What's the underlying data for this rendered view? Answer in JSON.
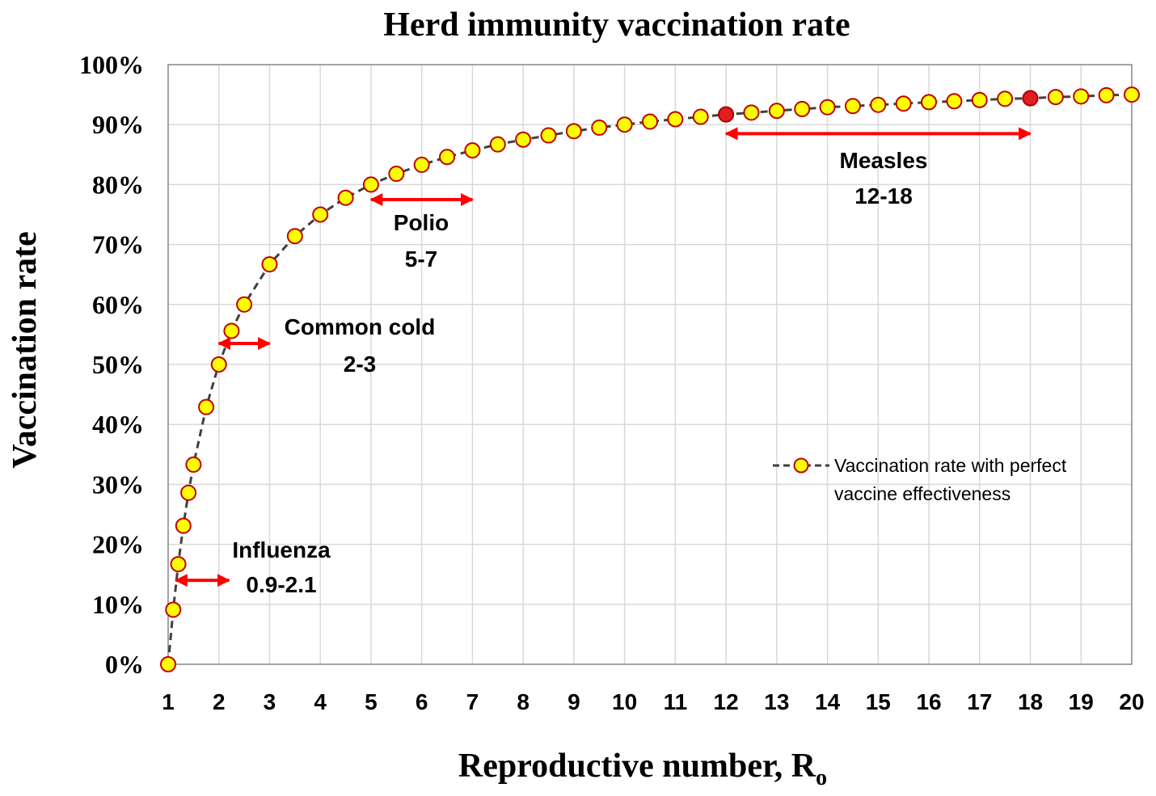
{
  "chart_data": {
    "type": "line",
    "title": "Herd immunity vaccination rate",
    "xlabel": "Reproductive number, R",
    "xlabel_subscript": "o",
    "ylabel": "Vaccination rate",
    "xlim": [
      1,
      20
    ],
    "ylim": [
      0,
      1
    ],
    "x_ticks": [
      1,
      2,
      3,
      4,
      5,
      6,
      7,
      8,
      9,
      10,
      11,
      12,
      13,
      14,
      15,
      16,
      17,
      18,
      19,
      20
    ],
    "y_ticks": [
      0,
      0.1,
      0.2,
      0.3,
      0.4,
      0.5,
      0.6,
      0.7,
      0.8,
      0.9,
      1.0
    ],
    "y_tick_labels": [
      "0%",
      "10%",
      "20%",
      "30%",
      "40%",
      "50%",
      "60%",
      "70%",
      "80%",
      "90%",
      "100%"
    ],
    "grid": true,
    "legend_position": "right-middle",
    "series": [
      {
        "name": "Vaccination rate with perfect vaccine effectiveness",
        "line_color": "#404040",
        "marker_fill": "#ffff00",
        "marker_edge": "#c00000",
        "x": [
          1,
          1.1,
          1.2,
          1.3,
          1.4,
          1.5,
          1.75,
          2,
          2.25,
          2.5,
          3,
          3.5,
          4,
          4.5,
          5,
          5.5,
          6,
          6.5,
          7,
          7.5,
          8,
          8.5,
          9,
          9.5,
          10,
          10.5,
          11,
          11.5,
          12,
          12.5,
          13,
          13.5,
          14,
          14.5,
          15,
          15.5,
          16,
          16.5,
          17,
          17.5,
          18,
          18.5,
          19,
          19.5,
          20
        ],
        "y": [
          0,
          0.091,
          0.167,
          0.231,
          0.286,
          0.333,
          0.429,
          0.5,
          0.556,
          0.6,
          0.667,
          0.714,
          0.75,
          0.778,
          0.8,
          0.818,
          0.833,
          0.846,
          0.857,
          0.867,
          0.875,
          0.882,
          0.889,
          0.895,
          0.9,
          0.905,
          0.909,
          0.913,
          0.917,
          0.92,
          0.923,
          0.926,
          0.929,
          0.931,
          0.933,
          0.935,
          0.9375,
          0.939,
          0.941,
          0.943,
          0.944,
          0.946,
          0.947,
          0.949,
          0.95
        ]
      }
    ],
    "highlighted_points": [
      {
        "x": 12,
        "y": 0.917,
        "color": "#e02020"
      },
      {
        "x": 18,
        "y": 0.944,
        "color": "#e02020"
      }
    ],
    "annotations": [
      {
        "name": "influenza",
        "label": "Influenza",
        "range_label": "0.9-2.1",
        "x_start": 1.15,
        "x_end": 2.2,
        "y": 0.14
      },
      {
        "name": "common-cold",
        "label": "Common cold",
        "range_label": "2-3",
        "x_start": 2,
        "x_end": 3,
        "y": 0.535
      },
      {
        "name": "polio",
        "label": "Polio",
        "range_label": "5-7",
        "x_start": 5,
        "x_end": 7,
        "y": 0.775
      },
      {
        "name": "measles",
        "label": "Measles",
        "range_label": "12-18",
        "x_start": 12,
        "x_end": 18,
        "y": 0.885
      }
    ],
    "arrow_color": "#ff0000"
  }
}
